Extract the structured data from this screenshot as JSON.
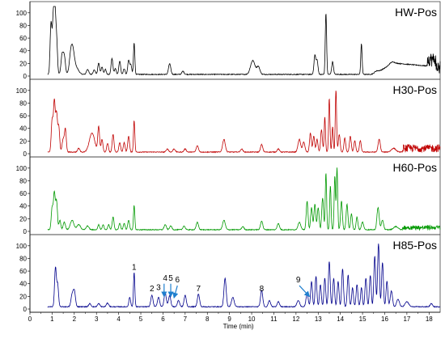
{
  "chart_data": {
    "type": "line",
    "xlabel": "Time (min)",
    "xlim": [
      0,
      18.5
    ],
    "ylim": [
      0,
      110
    ],
    "x_ticks": [
      "0",
      "1",
      "2",
      "3",
      "4",
      "5",
      "6",
      "7",
      "8",
      "9",
      "10",
      "11",
      "12",
      "13",
      "14",
      "15",
      "16",
      "17",
      "18"
    ],
    "y_ticks": [
      "0",
      "20",
      "40",
      "60",
      "80",
      "100"
    ],
    "panels": [
      {
        "name": "HW-Pos",
        "color": "#000000",
        "baseline": 2,
        "peaks": [
          [
            0.95,
            80,
            0.04
          ],
          [
            1.05,
            78,
            0.04
          ],
          [
            1.12,
            96,
            0.04
          ],
          [
            1.2,
            55,
            0.04
          ],
          [
            1.45,
            30,
            0.05
          ],
          [
            1.55,
            28,
            0.05
          ],
          [
            1.85,
            33,
            0.07
          ],
          [
            1.95,
            27,
            0.07
          ],
          [
            2.1,
            10,
            0.1
          ],
          [
            2.6,
            8,
            0.05
          ],
          [
            2.9,
            7,
            0.05
          ],
          [
            3.1,
            18,
            0.04
          ],
          [
            3.25,
            12,
            0.04
          ],
          [
            3.4,
            8,
            0.04
          ],
          [
            3.7,
            25,
            0.04
          ],
          [
            3.85,
            9,
            0.04
          ],
          [
            4.05,
            21,
            0.04
          ],
          [
            4.25,
            9,
            0.04
          ],
          [
            4.45,
            22,
            0.04
          ],
          [
            4.55,
            15,
            0.04
          ],
          [
            4.7,
            50,
            0.03
          ],
          [
            6.3,
            17,
            0.05
          ],
          [
            6.9,
            5,
            0.05
          ],
          [
            10.05,
            22,
            0.1
          ],
          [
            10.3,
            12,
            0.07
          ],
          [
            12.85,
            30,
            0.04
          ],
          [
            12.95,
            22,
            0.04
          ],
          [
            13.35,
            97,
            0.03
          ],
          [
            13.65,
            20,
            0.04
          ],
          [
            14.95,
            48,
            0.03
          ],
          [
            15.6,
            3,
            0.1
          ],
          [
            16.3,
            3,
            0.1
          ]
        ],
        "humps": [
          [
            15.5,
            16.4,
            18.3,
            18,
            12
          ]
        ],
        "noise": [
          [
            17.9,
            18.5,
            22
          ]
        ],
        "labels": []
      },
      {
        "name": "H30-Pos",
        "color": "#c00000",
        "baseline": 2,
        "peaks": [
          [
            1.0,
            50,
            0.04
          ],
          [
            1.1,
            80,
            0.04
          ],
          [
            1.2,
            60,
            0.04
          ],
          [
            1.3,
            40,
            0.04
          ],
          [
            1.5,
            20,
            0.05
          ],
          [
            1.6,
            35,
            0.04
          ],
          [
            2.2,
            6,
            0.05
          ],
          [
            2.8,
            30,
            0.12
          ],
          [
            3.1,
            40,
            0.04
          ],
          [
            3.25,
            20,
            0.04
          ],
          [
            3.5,
            14,
            0.04
          ],
          [
            3.75,
            28,
            0.04
          ],
          [
            4.05,
            15,
            0.04
          ],
          [
            4.25,
            15,
            0.04
          ],
          [
            4.45,
            25,
            0.04
          ],
          [
            4.7,
            50,
            0.03
          ],
          [
            6.2,
            5,
            0.05
          ],
          [
            6.5,
            5,
            0.05
          ],
          [
            7.0,
            5,
            0.05
          ],
          [
            7.55,
            10,
            0.05
          ],
          [
            8.75,
            20,
            0.06
          ],
          [
            9.55,
            5,
            0.05
          ],
          [
            10.45,
            12,
            0.05
          ],
          [
            11.2,
            5,
            0.05
          ],
          [
            12.15,
            20,
            0.06
          ],
          [
            12.35,
            16,
            0.05
          ],
          [
            12.65,
            30,
            0.04
          ],
          [
            12.8,
            25,
            0.04
          ],
          [
            12.95,
            20,
            0.04
          ],
          [
            13.15,
            35,
            0.04
          ],
          [
            13.3,
            55,
            0.03
          ],
          [
            13.5,
            85,
            0.03
          ],
          [
            13.65,
            40,
            0.03
          ],
          [
            13.8,
            98,
            0.03
          ],
          [
            13.95,
            28,
            0.04
          ],
          [
            14.2,
            22,
            0.04
          ],
          [
            14.45,
            25,
            0.04
          ],
          [
            14.65,
            18,
            0.04
          ],
          [
            14.9,
            18,
            0.04
          ],
          [
            15.75,
            20,
            0.05
          ],
          [
            16.4,
            6,
            0.1
          ]
        ],
        "humps": [],
        "noise": [
          [
            16.8,
            18.5,
            12
          ]
        ],
        "labels": []
      },
      {
        "name": "H60-Pos",
        "color": "#009900",
        "baseline": 2,
        "peaks": [
          [
            1.0,
            35,
            0.04
          ],
          [
            1.1,
            58,
            0.04
          ],
          [
            1.2,
            45,
            0.04
          ],
          [
            1.35,
            15,
            0.04
          ],
          [
            1.55,
            12,
            0.05
          ],
          [
            1.9,
            15,
            0.08
          ],
          [
            2.2,
            8,
            0.08
          ],
          [
            2.6,
            6,
            0.06
          ],
          [
            3.1,
            8,
            0.04
          ],
          [
            3.3,
            8,
            0.04
          ],
          [
            3.55,
            8,
            0.04
          ],
          [
            3.75,
            20,
            0.04
          ],
          [
            4.05,
            10,
            0.04
          ],
          [
            4.25,
            10,
            0.04
          ],
          [
            4.45,
            15,
            0.04
          ],
          [
            4.7,
            38,
            0.03
          ],
          [
            6.1,
            8,
            0.05
          ],
          [
            6.35,
            6,
            0.05
          ],
          [
            6.95,
            6,
            0.05
          ],
          [
            7.55,
            12,
            0.05
          ],
          [
            8.75,
            15,
            0.06
          ],
          [
            9.6,
            5,
            0.05
          ],
          [
            10.45,
            14,
            0.05
          ],
          [
            11.2,
            10,
            0.05
          ],
          [
            12.15,
            12,
            0.06
          ],
          [
            12.5,
            45,
            0.04
          ],
          [
            12.7,
            35,
            0.04
          ],
          [
            12.85,
            40,
            0.04
          ],
          [
            13.0,
            35,
            0.04
          ],
          [
            13.2,
            50,
            0.04
          ],
          [
            13.35,
            90,
            0.03
          ],
          [
            13.55,
            70,
            0.03
          ],
          [
            13.75,
            85,
            0.03
          ],
          [
            13.85,
            98,
            0.03
          ],
          [
            14.05,
            45,
            0.04
          ],
          [
            14.3,
            40,
            0.04
          ],
          [
            14.5,
            25,
            0.04
          ],
          [
            14.75,
            20,
            0.04
          ],
          [
            15.0,
            12,
            0.05
          ],
          [
            15.7,
            35,
            0.05
          ],
          [
            15.9,
            15,
            0.05
          ],
          [
            16.5,
            5,
            0.1
          ]
        ],
        "humps": [],
        "noise": [
          [
            16.8,
            18.5,
            7
          ]
        ],
        "labels": []
      },
      {
        "name": "H85-Pos",
        "color": "#00008b",
        "baseline": 3,
        "peaks": [
          [
            1.15,
            62,
            0.04
          ],
          [
            1.25,
            35,
            0.04
          ],
          [
            1.9,
            18,
            0.05
          ],
          [
            2.0,
            25,
            0.05
          ],
          [
            2.7,
            5,
            0.05
          ],
          [
            3.1,
            5,
            0.05
          ],
          [
            3.5,
            6,
            0.05
          ],
          [
            4.5,
            15,
            0.04
          ],
          [
            4.7,
            54,
            0.03
          ],
          [
            5.5,
            18,
            0.05
          ],
          [
            5.8,
            15,
            0.05
          ],
          [
            6.1,
            22,
            0.05
          ],
          [
            6.3,
            18,
            0.05
          ],
          [
            6.7,
            10,
            0.05
          ],
          [
            7.0,
            18,
            0.05
          ],
          [
            7.6,
            20,
            0.05
          ],
          [
            8.8,
            45,
            0.05
          ],
          [
            9.15,
            15,
            0.06
          ],
          [
            10.45,
            26,
            0.05
          ],
          [
            10.8,
            10,
            0.05
          ],
          [
            11.2,
            8,
            0.05
          ],
          [
            12.1,
            10,
            0.06
          ],
          [
            12.5,
            20,
            0.05
          ],
          [
            12.7,
            40,
            0.04
          ],
          [
            12.9,
            48,
            0.04
          ],
          [
            13.1,
            35,
            0.04
          ],
          [
            13.3,
            45,
            0.04
          ],
          [
            13.5,
            72,
            0.04
          ],
          [
            13.7,
            45,
            0.04
          ],
          [
            13.9,
            40,
            0.04
          ],
          [
            14.1,
            60,
            0.04
          ],
          [
            14.35,
            50,
            0.04
          ],
          [
            14.55,
            30,
            0.04
          ],
          [
            14.75,
            35,
            0.04
          ],
          [
            14.95,
            30,
            0.04
          ],
          [
            15.15,
            45,
            0.04
          ],
          [
            15.35,
            50,
            0.04
          ],
          [
            15.55,
            80,
            0.04
          ],
          [
            15.72,
            100,
            0.04
          ],
          [
            15.9,
            70,
            0.04
          ],
          [
            16.1,
            40,
            0.04
          ],
          [
            16.3,
            25,
            0.05
          ],
          [
            16.6,
            12,
            0.06
          ],
          [
            17.0,
            8,
            0.08
          ],
          [
            18.1,
            5,
            0.05
          ]
        ],
        "humps": [
          [
            5.0,
            8.0,
            3,
            6,
            2
          ]
        ],
        "noise": [],
        "labels": [
          {
            "text": "1",
            "x": 4.7,
            "y": 62
          },
          {
            "text": "2",
            "x": 5.5,
            "y": 28
          },
          {
            "text": "3",
            "x": 5.8,
            "y": 30
          },
          {
            "text": "4",
            "x": 6.1,
            "y": 45
          },
          {
            "text": "5",
            "x": 6.35,
            "y": 45
          },
          {
            "text": "6",
            "x": 6.65,
            "y": 42
          },
          {
            "text": "7",
            "x": 7.6,
            "y": 28
          },
          {
            "text": "8",
            "x": 10.45,
            "y": 28
          },
          {
            "text": "9",
            "x": 12.1,
            "y": 42
          }
        ],
        "arrows": [
          {
            "from": [
              6.05,
              40
            ],
            "to": [
              6.05,
              20
            ]
          },
          {
            "from": [
              6.35,
              40
            ],
            "to": [
              6.35,
              20
            ]
          },
          {
            "from": [
              6.65,
              37
            ],
            "to": [
              6.5,
              18
            ]
          },
          {
            "from": [
              12.15,
              37
            ],
            "to": [
              12.6,
              20
            ]
          }
        ],
        "arrow_color": "#1f7fce"
      }
    ]
  }
}
